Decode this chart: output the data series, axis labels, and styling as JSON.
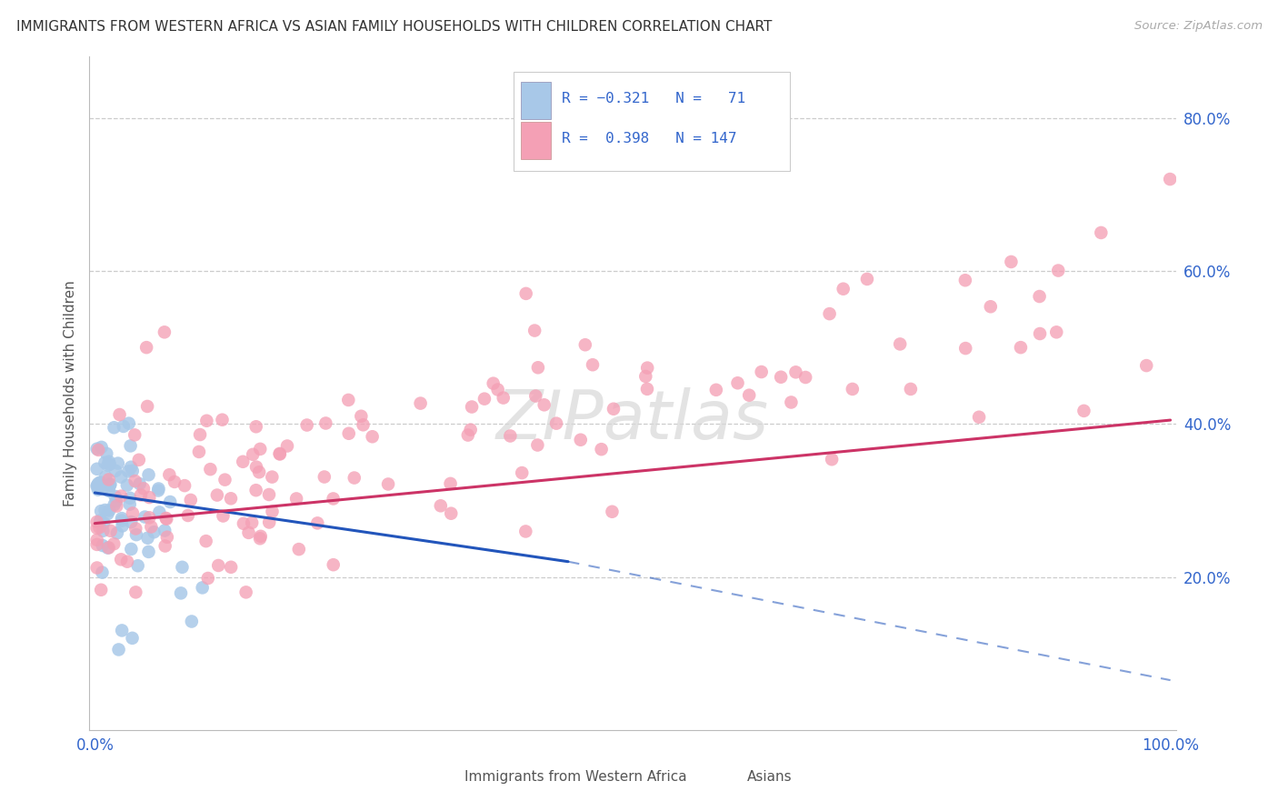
{
  "title": "IMMIGRANTS FROM WESTERN AFRICA VS ASIAN FAMILY HOUSEHOLDS WITH CHILDREN CORRELATION CHART",
  "source": "Source: ZipAtlas.com",
  "ylabel": "Family Households with Children",
  "legend_label1": "Immigrants from Western Africa",
  "legend_label2": "Asians",
  "r1": -0.321,
  "n1": 71,
  "r2": 0.398,
  "n2": 147,
  "color1": "#a8c8e8",
  "color2": "#f4a0b5",
  "line_color1": "#2255bb",
  "line_color2": "#cc3366",
  "xlim": [
    0.0,
    1.0
  ],
  "ylim": [
    0.0,
    0.88
  ],
  "yticks": [
    0.2,
    0.4,
    0.6,
    0.8
  ],
  "ytick_labels": [
    "20.0%",
    "40.0%",
    "60.0%",
    "80.0%"
  ],
  "xtick_labels": [
    "0.0%",
    "100.0%"
  ],
  "grid_color": "#cccccc",
  "watermark_color": "#d8d8d8",
  "watermark_alpha": 0.7
}
